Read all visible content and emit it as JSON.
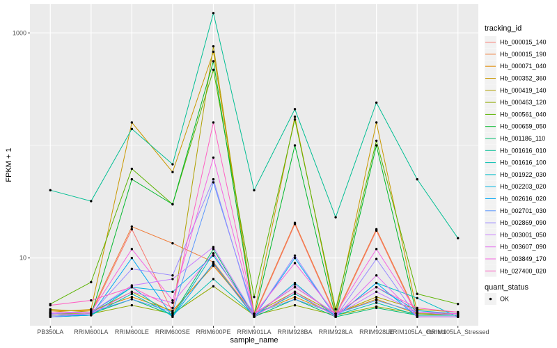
{
  "chart_data": {
    "type": "line",
    "xlabel": "sample_name",
    "ylabel": "FPKM + 1",
    "y_scale": "log10",
    "ylim": [
      2.5,
      1800
    ],
    "y_ticks": [
      10,
      1000
    ],
    "y_minor_ticks": [
      100
    ],
    "grid": true,
    "legend_position": "right",
    "categories": [
      "PB350LA",
      "RRIM600LA",
      "RRIM600LE",
      "RRIM600SE",
      "RRIM600PE",
      "RRIM901LA",
      "RRIM928BA",
      "RRIM928LA",
      "RRIM928LE",
      "RRIM105LA_Control",
      "RRIM105LA_Stressed"
    ],
    "category_labels": [
      "PB350LA",
      "RRIM600LA",
      "RRIM600LE",
      "RRIM600SE",
      "RRIM600PE",
      "RRIM901LA",
      "RRIM928BA",
      "RRIM928LA",
      "RRIM928LE",
      "RRIM105LA_Control",
      "RRIM105LA_Stressed"
    ],
    "legend_title": "tracking_id",
    "series": [
      {
        "name": "Hb_000015_140",
        "color": "#F8766D",
        "values": [
          3.1,
          3.2,
          18.0,
          3.3,
          8.8,
          3.0,
          20.0,
          3.0,
          17.5,
          3.0,
          3.0
        ]
      },
      {
        "name": "Hb_000015_190",
        "color": "#EF7F3D",
        "values": [
          3.2,
          3.3,
          19.0,
          13.5,
          9.2,
          3.1,
          20.5,
          3.1,
          18.0,
          3.1,
          3.1
        ]
      },
      {
        "name": "Hb_000071_040",
        "color": "#E08A00",
        "values": [
          3.4,
          3.4,
          4.5,
          3.4,
          8.5,
          3.2,
          4.5,
          3.2,
          4.3,
          3.2,
          3.1
        ]
      },
      {
        "name": "Hb_000352_360",
        "color": "#C99800",
        "values": [
          3.3,
          3.5,
          160.0,
          58.0,
          680.0,
          3.2,
          180.0,
          3.2,
          160.0,
          3.3,
          3.2
        ]
      },
      {
        "name": "Hb_000419_140",
        "color": "#B0A000",
        "values": [
          3.5,
          3.3,
          5.0,
          3.3,
          760.0,
          3.2,
          5.0,
          3.2,
          4.5,
          3.5,
          3.3
        ]
      },
      {
        "name": "Hb_000463_120",
        "color": "#8FAA00",
        "values": [
          3.2,
          3.2,
          3.8,
          3.2,
          5.6,
          3.1,
          3.8,
          3.1,
          3.7,
          3.2,
          3.2
        ]
      },
      {
        "name": "Hb_000561_040",
        "color": "#5BB300",
        "values": [
          3.9,
          6.1,
          62.0,
          30.0,
          470.0,
          4.5,
          170.0,
          3.5,
          110.0,
          4.8,
          3.9
        ]
      },
      {
        "name": "Hb_000659_050",
        "color": "#00B82B",
        "values": [
          3.0,
          3.1,
          50.0,
          30.0,
          560.0,
          3.0,
          100.0,
          3.0,
          100.0,
          3.0,
          3.0
        ]
      },
      {
        "name": "Hb_001186_110",
        "color": "#00BC6E",
        "values": [
          3.1,
          3.2,
          4.3,
          3.1,
          12.0,
          3.0,
          4.3,
          3.0,
          3.6,
          3.1,
          3.1
        ]
      },
      {
        "name": "Hb_001616_010",
        "color": "#00BE93",
        "values": [
          40.0,
          32.0,
          140.0,
          68.0,
          1500.0,
          40.0,
          210.0,
          23.0,
          240.0,
          50.0,
          15.0
        ]
      },
      {
        "name": "Hb_001616_100",
        "color": "#00BFB0",
        "values": [
          3.1,
          3.1,
          4.8,
          3.1,
          6.5,
          3.1,
          4.8,
          3.1,
          4.0,
          3.1,
          3.1
        ]
      },
      {
        "name": "Hb_001922_030",
        "color": "#00BCC9",
        "values": [
          3.0,
          3.1,
          5.5,
          3.0,
          11.0,
          3.0,
          6.0,
          3.0,
          6.0,
          4.4,
          3.0
        ]
      },
      {
        "name": "Hb_002203_020",
        "color": "#00B4E2",
        "values": [
          3.2,
          3.3,
          5.5,
          5.0,
          10.5,
          3.2,
          5.5,
          3.2,
          5.5,
          3.4,
          3.2
        ]
      },
      {
        "name": "Hb_002616_020",
        "color": "#00A7F4",
        "values": [
          3.0,
          3.1,
          10.0,
          3.0,
          9.0,
          3.0,
          10.0,
          3.0,
          6.0,
          3.0,
          3.0
        ]
      },
      {
        "name": "Hb_002701_030",
        "color": "#5A97FD",
        "values": [
          3.3,
          3.3,
          4.3,
          3.3,
          47.0,
          3.2,
          4.3,
          3.2,
          4.2,
          3.3,
          3.2
        ]
      },
      {
        "name": "Hb_002869_090",
        "color": "#9A8AFF",
        "values": [
          3.0,
          3.2,
          8.0,
          7.0,
          50.0,
          3.0,
          10.5,
          3.0,
          9.8,
          3.0,
          3.0
        ]
      },
      {
        "name": "Hb_003001_050",
        "color": "#C77CFF",
        "values": [
          3.2,
          3.3,
          5.7,
          6.5,
          12.5,
          3.1,
          5.8,
          3.1,
          5.0,
          3.3,
          3.1
        ]
      },
      {
        "name": "Hb_003607_090",
        "color": "#E36CF0",
        "values": [
          3.1,
          3.2,
          5.0,
          4.0,
          11.0,
          3.0,
          5.0,
          3.0,
          7.0,
          3.0,
          3.0
        ]
      },
      {
        "name": "Hb_003849_170",
        "color": "#F564E3",
        "values": [
          3.3,
          3.3,
          12.0,
          4.2,
          78.0,
          3.2,
          9.0,
          3.2,
          12.0,
          3.3,
          3.2
        ]
      },
      {
        "name": "Hb_027400_020",
        "color": "#FF61C3",
        "values": [
          3.8,
          4.2,
          5.5,
          3.6,
          160.0,
          3.2,
          5.5,
          3.2,
          5.5,
          3.6,
          3.3
        ]
      }
    ],
    "shape_legend": {
      "title": "quant_status",
      "items": [
        "OK"
      ]
    }
  }
}
